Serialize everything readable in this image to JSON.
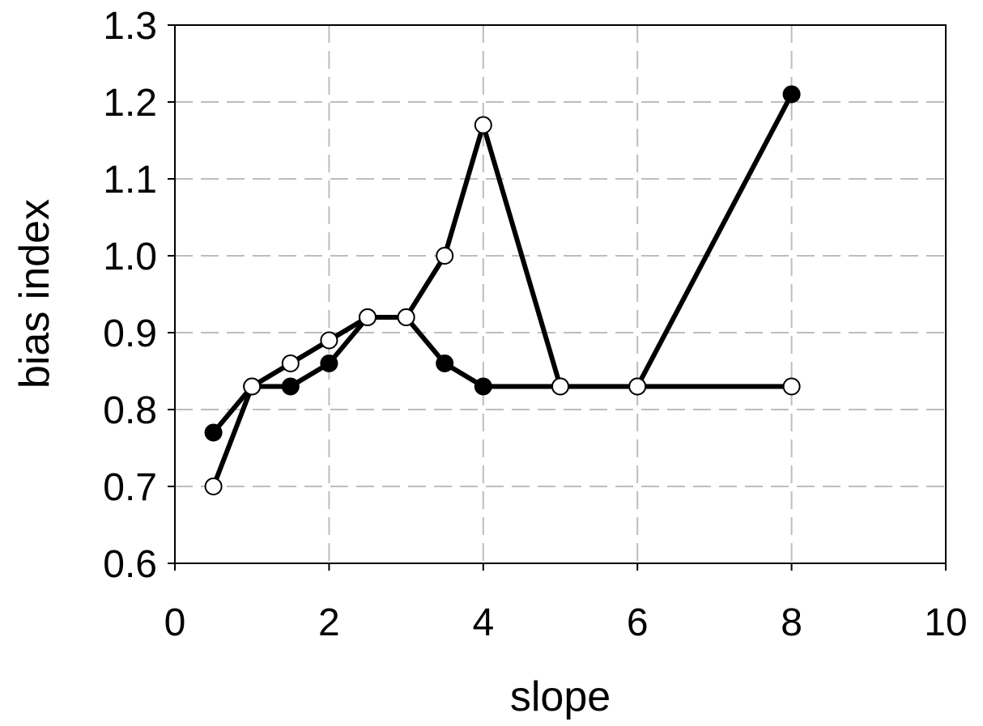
{
  "chart_data": {
    "type": "line",
    "title": "",
    "xlabel": "slope",
    "ylabel": "bias index",
    "xlim": [
      0,
      10
    ],
    "ylim": [
      0.6,
      1.3
    ],
    "xticks": [
      "0",
      "2",
      "4",
      "6",
      "8",
      "10"
    ],
    "yticks": [
      "0.6",
      "0.7",
      "0.8",
      "0.9",
      "1.0",
      "1.1",
      "1.2",
      "1.3"
    ],
    "grid": true,
    "legend": "none",
    "series": [
      {
        "marker": "filled-circle",
        "color": "#000000",
        "points": [
          [
            0.5,
            0.77
          ],
          [
            1,
            0.83
          ],
          [
            1.5,
            0.83
          ],
          [
            2,
            0.86
          ],
          [
            2.5,
            0.92
          ],
          [
            3,
            0.92
          ],
          [
            3.5,
            0.86
          ],
          [
            4,
            0.83
          ],
          [
            5,
            0.83
          ],
          [
            6,
            0.83
          ],
          [
            8,
            1.21
          ]
        ]
      },
      {
        "marker": "open-circle",
        "color": "#000000",
        "points": [
          [
            0.5,
            0.7
          ],
          [
            1,
            0.83
          ],
          [
            1.5,
            0.86
          ],
          [
            2,
            0.89
          ],
          [
            2.5,
            0.92
          ],
          [
            3,
            0.92
          ],
          [
            3.5,
            1.0
          ],
          [
            4,
            1.17
          ],
          [
            5,
            0.83
          ],
          [
            6,
            0.83
          ],
          [
            8,
            0.83
          ]
        ]
      }
    ]
  }
}
